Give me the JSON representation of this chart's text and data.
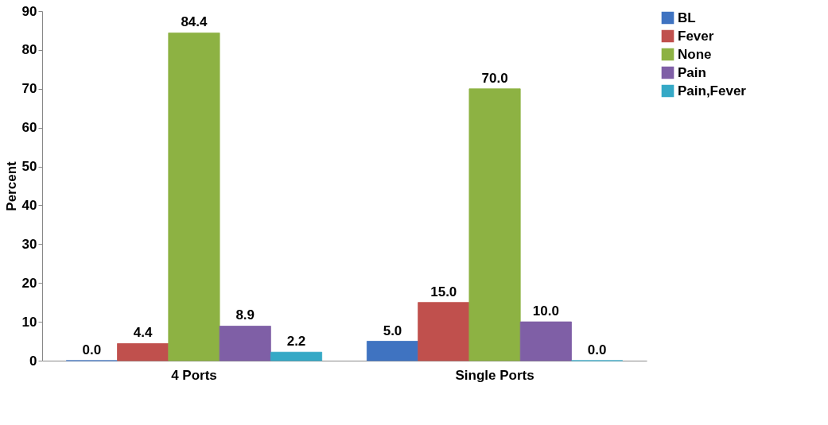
{
  "chart_data": {
    "type": "bar",
    "ylabel": "Percent",
    "categories": [
      "4 Ports",
      "Single Ports"
    ],
    "series": [
      {
        "name": "BL",
        "color": "#3f73c1",
        "values": [
          0.0,
          5.0
        ],
        "value_labels": [
          "0.0",
          "5.0"
        ]
      },
      {
        "name": "Fever",
        "color": "#c0504d",
        "values": [
          4.4,
          15.0
        ],
        "value_labels": [
          "4.4",
          "15.0"
        ]
      },
      {
        "name": "None",
        "color": "#8db243",
        "values": [
          84.4,
          70.0
        ],
        "value_labels": [
          "84.4",
          "70.0"
        ]
      },
      {
        "name": "Pain",
        "color": "#7f5fa6",
        "values": [
          8.9,
          10.0
        ],
        "value_labels": [
          "8.9",
          "10.0"
        ]
      },
      {
        "name": "Pain,Fever",
        "color": "#35a9c6",
        "values": [
          2.2,
          0.0
        ],
        "value_labels": [
          "2.2",
          "0.0"
        ]
      }
    ],
    "ylim": [
      0,
      90
    ],
    "yticks": [
      0,
      10,
      20,
      30,
      40,
      50,
      60,
      70,
      80,
      90
    ],
    "grid": false,
    "legend": "right"
  }
}
